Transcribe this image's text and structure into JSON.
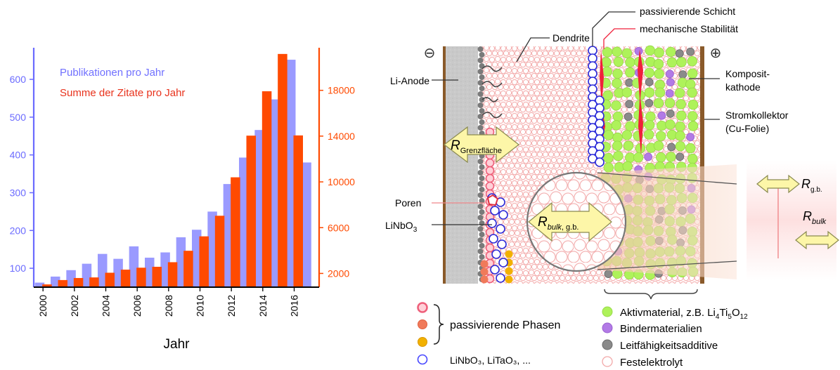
{
  "chart_data": {
    "type": "bar",
    "categories": [
      "2000",
      "2001",
      "2002",
      "2003",
      "2004",
      "2005",
      "2006",
      "2007",
      "2008",
      "2009",
      "2010",
      "2011",
      "2012",
      "2013",
      "2014",
      "2015",
      "2016",
      "2017"
    ],
    "x_tick_labels": [
      "2000",
      "2002",
      "2004",
      "2006",
      "2008",
      "2010",
      "2012",
      "2014",
      "2016"
    ],
    "xlabel": "Jahr",
    "y_left": {
      "ticks": [
        "100",
        "200",
        "300",
        "400",
        "500",
        "600"
      ],
      "range": [
        50,
        680
      ],
      "color": "#6b6bff"
    },
    "y_right": {
      "ticks": [
        "2000",
        "6000",
        "10000",
        "14000",
        "18000"
      ],
      "range": [
        800,
        21600
      ],
      "color": "#ff4a00"
    },
    "legend": [
      "Publikationen pro Jahr",
      "Summe der Zitate pro Jahr"
    ],
    "legend_placement": "top-left",
    "series": [
      {
        "name": "Publikationen pro Jahr",
        "axis": "left",
        "color": "#9a9aff",
        "values": [
          62,
          78,
          95,
          112,
          138,
          125,
          158,
          128,
          142,
          182,
          202,
          250,
          323,
          393,
          466,
          547,
          652,
          380
        ]
      },
      {
        "name": "Summe der Zitate pro Jahr",
        "axis": "right",
        "color": "#ff4a00",
        "values": [
          1040,
          1420,
          1600,
          1650,
          2060,
          2330,
          2500,
          2580,
          2980,
          3980,
          5240,
          7040,
          10400,
          14040,
          17920,
          21180,
          14060,
          null
        ]
      }
    ]
  },
  "diagram": {
    "electrodes": {
      "minus": "⊖",
      "plus": "⊕"
    },
    "labels": {
      "li_anode": "Li-Anode",
      "dendrite": "Dendrite",
      "passive_layer": "passivierende Schicht",
      "mech_stability": "mechanische Stabilität",
      "composite_cathode": [
        "Komposit-",
        "kathode"
      ],
      "current_collector": [
        "Stromkollektor",
        "(Cu-Folie)"
      ],
      "poren": "Poren",
      "linbo3": "LiNbO",
      "linbo3_sub": "3"
    },
    "resistances": {
      "interface": {
        "symbol": "R",
        "sub": "Grenzfläche"
      },
      "bulk_gb": {
        "symbol": "R",
        "sub_italic": "bulk",
        "sub_rest": ", g.b."
      },
      "gb": {
        "symbol": "R",
        "sub": "g.b."
      },
      "bulk": {
        "symbol": "R",
        "sub_italic": "bulk"
      }
    },
    "legend": {
      "passive_phases": "passivierende Phasen",
      "niobate": "LiNbO₃, LiTaO₃, ...",
      "active": {
        "text": "Aktivmaterial, z.B. Li",
        "s1": "4",
        "mid": "Ti",
        "s2": "5",
        "mid2": "O",
        "s3": "12"
      },
      "binder": "Bindermaterialien",
      "conductive": "Leitfähigkeitsadditive",
      "electrolyte": "Festelektrolyt"
    },
    "colors": {
      "electrolyte": "#f7b8b8",
      "passive_pink": "#ee5f7a",
      "passive_orange": "#f07a5a",
      "passive_yellow": "#f2b100",
      "niobate": "#2b2bd9",
      "active": "#aef25a",
      "binder": "#b27ae6",
      "conductive": "#8a8a8a",
      "collector": "#8a5a2a",
      "anode": "#c8c8c8"
    }
  }
}
